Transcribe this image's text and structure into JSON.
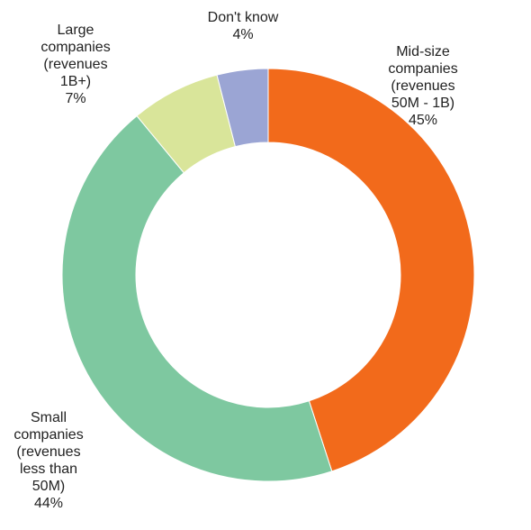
{
  "chart_data": {
    "type": "pie",
    "donut": true,
    "slices": [
      {
        "label": "Mid-size companies (revenues 50M - 1B)",
        "display_name": "Mid-size\ncompanies\n(revenues\n50M - 1B)",
        "value": 45,
        "value_label": "45%",
        "color": "#f26a1b"
      },
      {
        "label": "Small companies (revenues less than 50M)",
        "display_name": "Small\ncompanies\n(revenues\nless than\n50M)",
        "value": 44,
        "value_label": "44%",
        "color": "#7ec8a0"
      },
      {
        "label": "Large companies (revenues 1B+)",
        "display_name": "Large\ncompanies\n(revenues\n1B+)",
        "value": 7,
        "value_label": "7%",
        "color": "#d9e59a"
      },
      {
        "label": "Don't know",
        "display_name": "Don't know",
        "value": 4,
        "value_label": "4%",
        "color": "#9ba5d4"
      }
    ]
  }
}
